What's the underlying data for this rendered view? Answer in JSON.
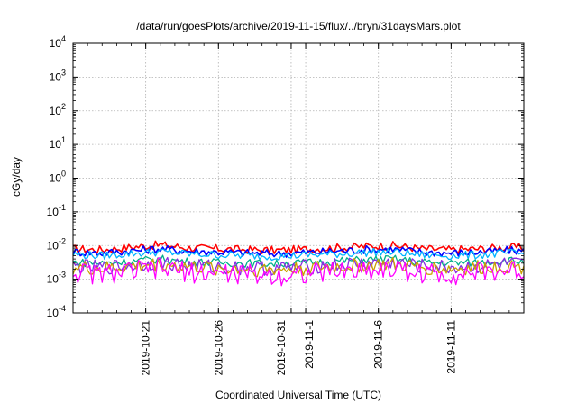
{
  "chart_data": {
    "type": "line",
    "title": "/data/run/goesPlots/archive/2019-11-15/flux/../bryn/31daysMars.plot",
    "xlabel": "Coordinated Universal Time (UTC)",
    "ylabel": "cGy/day",
    "yscale": "log",
    "ylim": [
      0.0001,
      10000
    ],
    "xlim": [
      "2019-10-16",
      "2019-11-16"
    ],
    "grid": true,
    "y_ticks": [
      {
        "base": "10",
        "exp": "-4",
        "value": 0.0001
      },
      {
        "base": "10",
        "exp": "-3",
        "value": 0.001
      },
      {
        "base": "10",
        "exp": "-2",
        "value": 0.01
      },
      {
        "base": "10",
        "exp": "-1",
        "value": 0.1
      },
      {
        "base": "10",
        "exp": "0",
        "value": 1
      },
      {
        "base": "10",
        "exp": "1",
        "value": 10
      },
      {
        "base": "10",
        "exp": "2",
        "value": 100
      },
      {
        "base": "10",
        "exp": "3",
        "value": 1000
      },
      {
        "base": "10",
        "exp": "4",
        "value": 10000
      }
    ],
    "x_ticks": [
      {
        "date": "2019-10-21",
        "label": "2019-10-21"
      },
      {
        "date": "2019-10-26",
        "label": "2019-10-26"
      },
      {
        "date": "2019-10-31",
        "label": "2019-10-31"
      },
      {
        "date": "2019-11-01",
        "label": "2019-11-1"
      },
      {
        "date": "2019-11-06",
        "label": "2019-11-6"
      },
      {
        "date": "2019-11-11",
        "label": "2019-11-11"
      }
    ],
    "x": [
      "2019-10-16",
      "2019-10-18",
      "2019-10-20",
      "2019-10-22",
      "2019-10-24",
      "2019-10-26",
      "2019-10-28",
      "2019-10-30",
      "2019-11-01",
      "2019-11-03",
      "2019-11-05",
      "2019-11-07",
      "2019-11-09",
      "2019-11-11",
      "2019-11-13",
      "2019-11-15",
      "2019-11-16"
    ],
    "series": [
      {
        "color": "#ff0000",
        "values": [
          0.008,
          0.0075,
          0.009,
          0.0105,
          0.0085,
          0.008,
          0.0075,
          0.0072,
          0.0078,
          0.0085,
          0.0095,
          0.01,
          0.008,
          0.0075,
          0.008,
          0.009,
          0.0085
        ]
      },
      {
        "color": "#0000ff",
        "values": [
          0.0065,
          0.006,
          0.007,
          0.008,
          0.0068,
          0.0064,
          0.006,
          0.0058,
          0.0062,
          0.0068,
          0.0075,
          0.0078,
          0.0064,
          0.006,
          0.0064,
          0.0072,
          0.0068
        ]
      },
      {
        "color": "#00b4ff",
        "values": [
          0.0055,
          0.005,
          0.0058,
          0.0065,
          0.0056,
          0.0053,
          0.005,
          0.0048,
          0.0052,
          0.0056,
          0.0062,
          0.0064,
          0.0053,
          0.005,
          0.0053,
          0.006,
          0.0056
        ]
      },
      {
        "color": "#00b08a",
        "values": [
          0.0032,
          0.003,
          0.0034,
          0.004,
          0.0033,
          0.0031,
          0.003,
          0.0029,
          0.0031,
          0.0034,
          0.0038,
          0.004,
          0.0032,
          0.003,
          0.0032,
          0.0036,
          0.0034
        ]
      },
      {
        "color": "#8a2be2",
        "values": [
          0.0024,
          0.0022,
          0.0026,
          0.0031,
          0.0025,
          0.0023,
          0.0022,
          0.0021,
          0.0023,
          0.0026,
          0.0029,
          0.003,
          0.0024,
          0.0022,
          0.0024,
          0.0028,
          0.0026
        ]
      },
      {
        "color": "#c8a000",
        "values": [
          0.0022,
          0.002,
          0.0024,
          0.0028,
          0.0023,
          0.0021,
          0.002,
          0.0019,
          0.0021,
          0.0023,
          0.0026,
          0.0027,
          0.0022,
          0.002,
          0.0022,
          0.0025,
          0.0023
        ]
      },
      {
        "color": "#ff00ff",
        "values": [
          0.0016,
          0.0014,
          0.0017,
          0.0021,
          0.0016,
          0.0015,
          0.0014,
          0.0013,
          0.0015,
          0.0017,
          0.0019,
          0.002,
          0.0015,
          0.0014,
          0.0016,
          0.0018,
          0.0017
        ]
      }
    ]
  }
}
